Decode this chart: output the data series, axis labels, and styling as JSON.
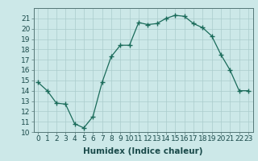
{
  "x": [
    0,
    1,
    2,
    3,
    4,
    5,
    6,
    7,
    8,
    9,
    10,
    11,
    12,
    13,
    14,
    15,
    16,
    17,
    18,
    19,
    20,
    21,
    22,
    23
  ],
  "y": [
    14.8,
    14.0,
    12.8,
    12.7,
    10.8,
    10.4,
    11.5,
    14.8,
    17.3,
    18.4,
    18.4,
    20.6,
    20.4,
    20.5,
    21.0,
    21.3,
    21.2,
    20.5,
    20.1,
    19.3,
    17.5,
    16.0,
    14.0,
    14.0
  ],
  "line_color": "#1a6b5a",
  "marker": "+",
  "marker_size": 4,
  "bg_color": "#cce8e8",
  "grid_color": "#aacccc",
  "xlabel": "Humidex (Indice chaleur)",
  "xlim": [
    -0.5,
    23.5
  ],
  "ylim": [
    10,
    22
  ],
  "xticks": [
    0,
    1,
    2,
    3,
    4,
    5,
    6,
    7,
    8,
    9,
    10,
    11,
    12,
    13,
    14,
    15,
    16,
    17,
    18,
    19,
    20,
    21,
    22,
    23
  ],
  "yticks": [
    10,
    11,
    12,
    13,
    14,
    15,
    16,
    17,
    18,
    19,
    20,
    21
  ],
  "tick_fontsize": 6.5,
  "label_fontsize": 7.5
}
